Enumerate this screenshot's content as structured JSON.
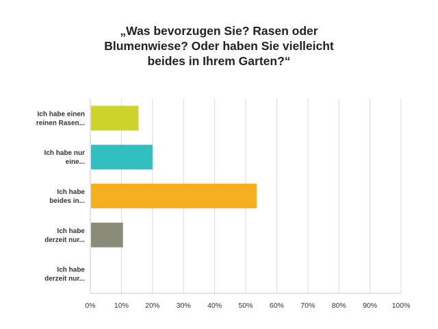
{
  "chart_data": {
    "type": "bar",
    "orientation": "horizontal",
    "title": [
      "„Was bevorzugen Sie? Rasen oder",
      "Blumenwiese? Oder haben Sie vielleicht",
      "beides in Ihrem Garten?“"
    ],
    "categories": [
      [
        "Ich habe einen",
        "reinen Rasen..."
      ],
      [
        "Ich habe nur",
        "eine..."
      ],
      [
        "Ich habe",
        "beides in..."
      ],
      [
        "Ich habe",
        "derzeit nur..."
      ],
      [
        "Ich habe",
        "derzeit nur..."
      ]
    ],
    "values": [
      15.5,
      20,
      53.5,
      10.5,
      0
    ],
    "colors": [
      "#cdd32a",
      "#31bfc0",
      "#f7ae21",
      "#8a8b79",
      "#a9a9a9"
    ],
    "xlim": [
      0,
      100
    ],
    "xticks": [
      "0%",
      "10%",
      "20%",
      "30%",
      "40%",
      "50%",
      "60%",
      "70%",
      "80%",
      "90%",
      "100%"
    ],
    "grid": true,
    "legend": "none"
  }
}
